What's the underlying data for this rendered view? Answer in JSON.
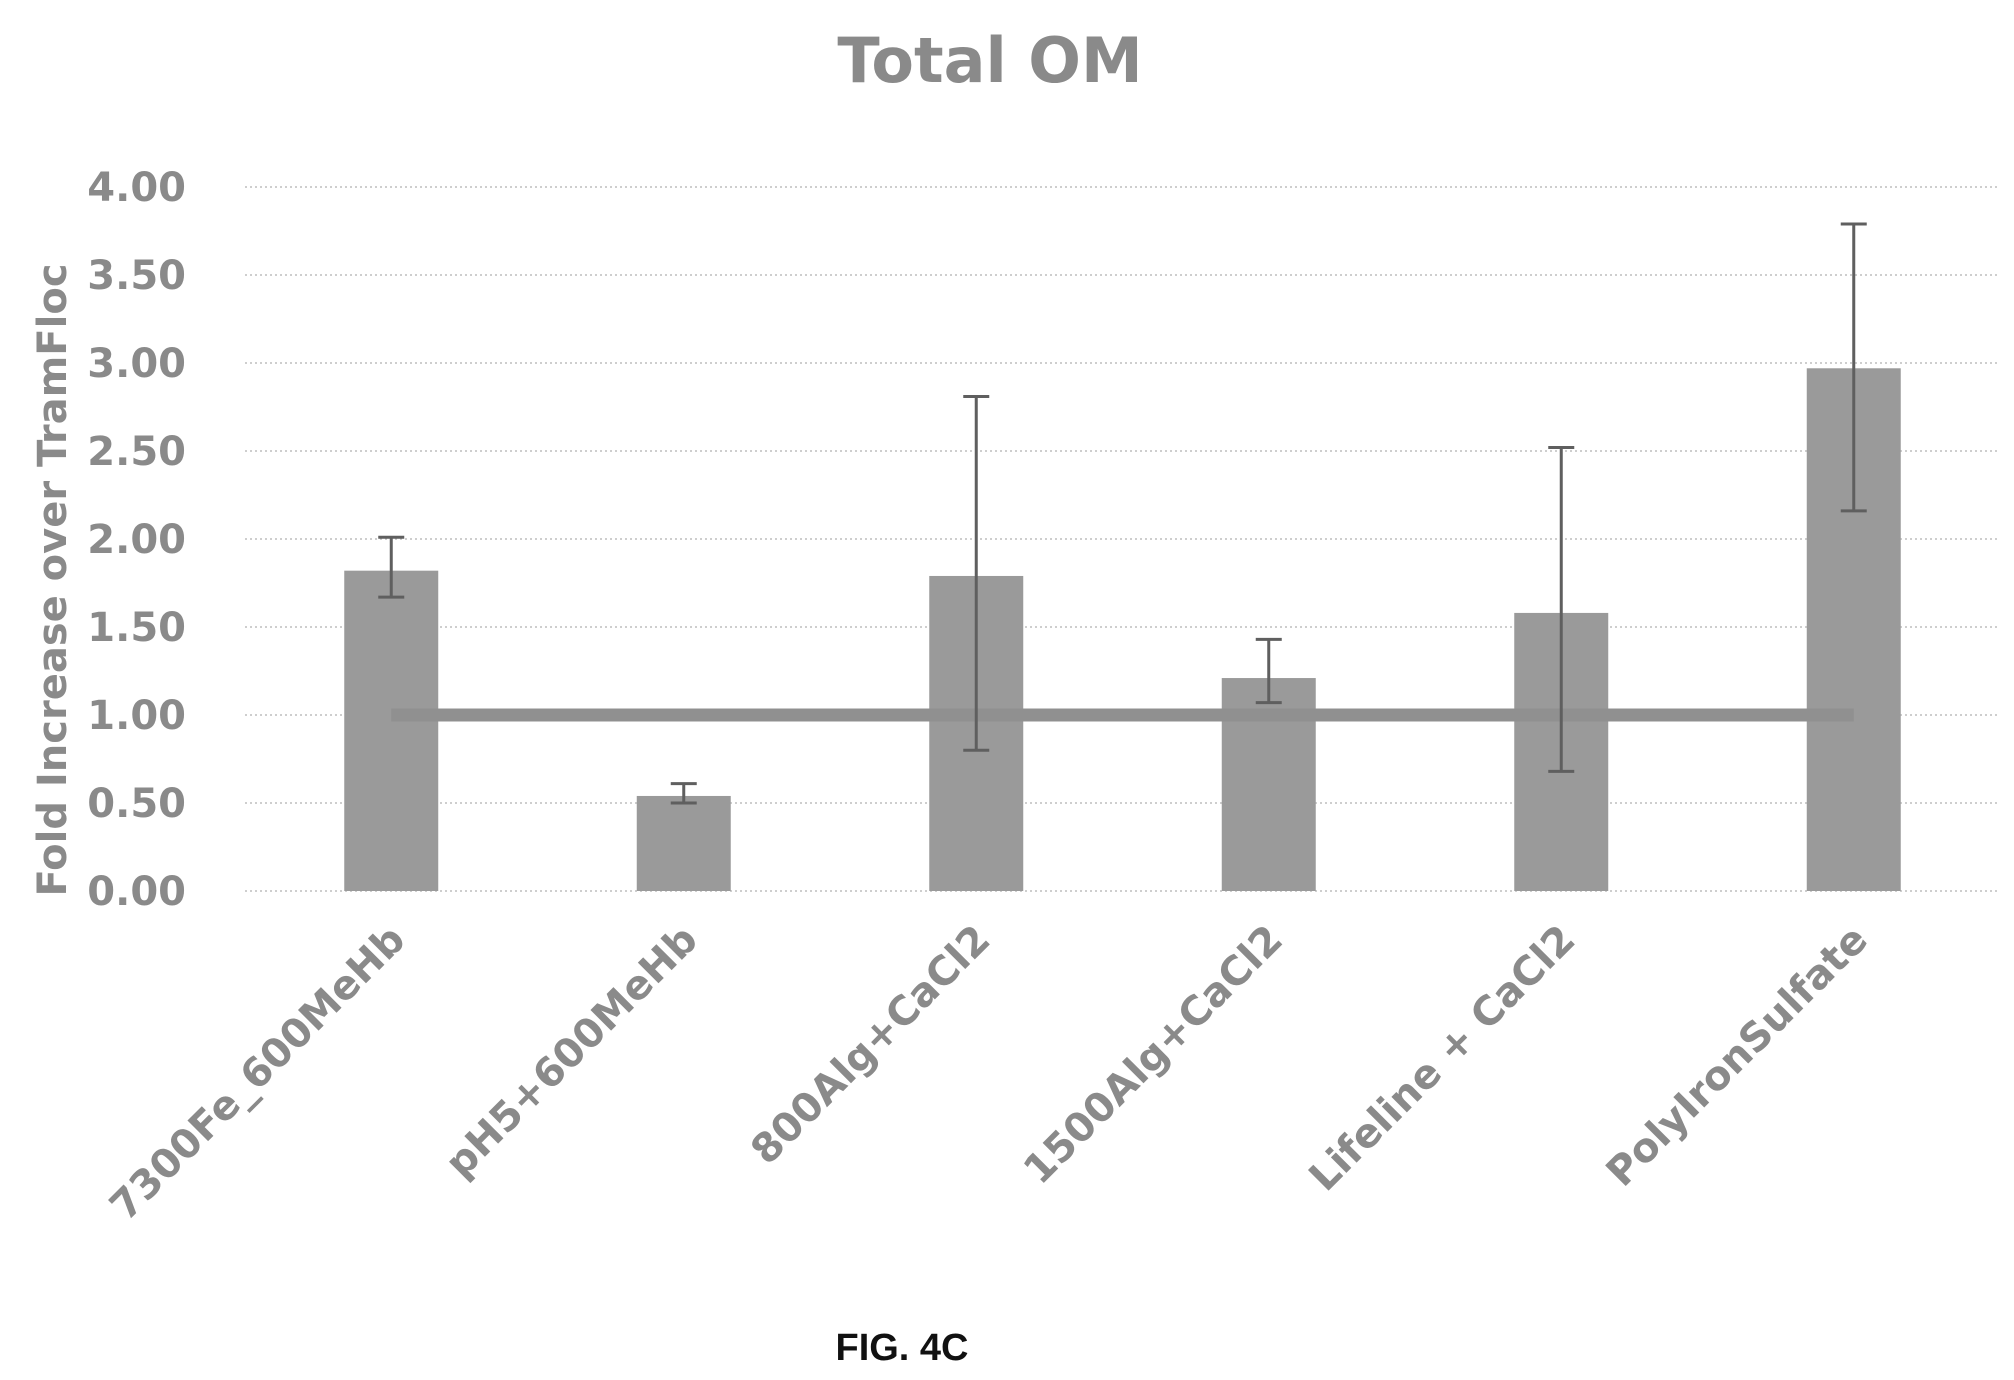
{
  "chart_data": {
    "type": "bar",
    "title": "Total OM",
    "ylabel": "Fold Increase over TramFloc",
    "xlabel": "",
    "ylim": [
      0,
      4
    ],
    "yticks": [
      "0.00",
      "0.50",
      "1.00",
      "1.50",
      "2.00",
      "2.50",
      "3.00",
      "3.50",
      "4.00"
    ],
    "grid": true,
    "categories": [
      "7300Fe_600MeHb",
      "pH5+600MeHb",
      "800Alg+CaCl2",
      "1500Alg+CaCl2",
      "Lifeline + CaCl2",
      "PolyIronSulfate"
    ],
    "values": [
      1.82,
      0.54,
      1.79,
      1.21,
      1.58,
      2.97
    ],
    "error_low": [
      1.67,
      0.5,
      0.8,
      1.07,
      0.68,
      2.16
    ],
    "error_high": [
      2.01,
      0.61,
      2.81,
      1.43,
      2.52,
      3.79
    ],
    "reference_line": 1.0,
    "bar_color": "#9a9a9a",
    "reference_color": "#909090"
  },
  "caption": "FIG. 4C"
}
